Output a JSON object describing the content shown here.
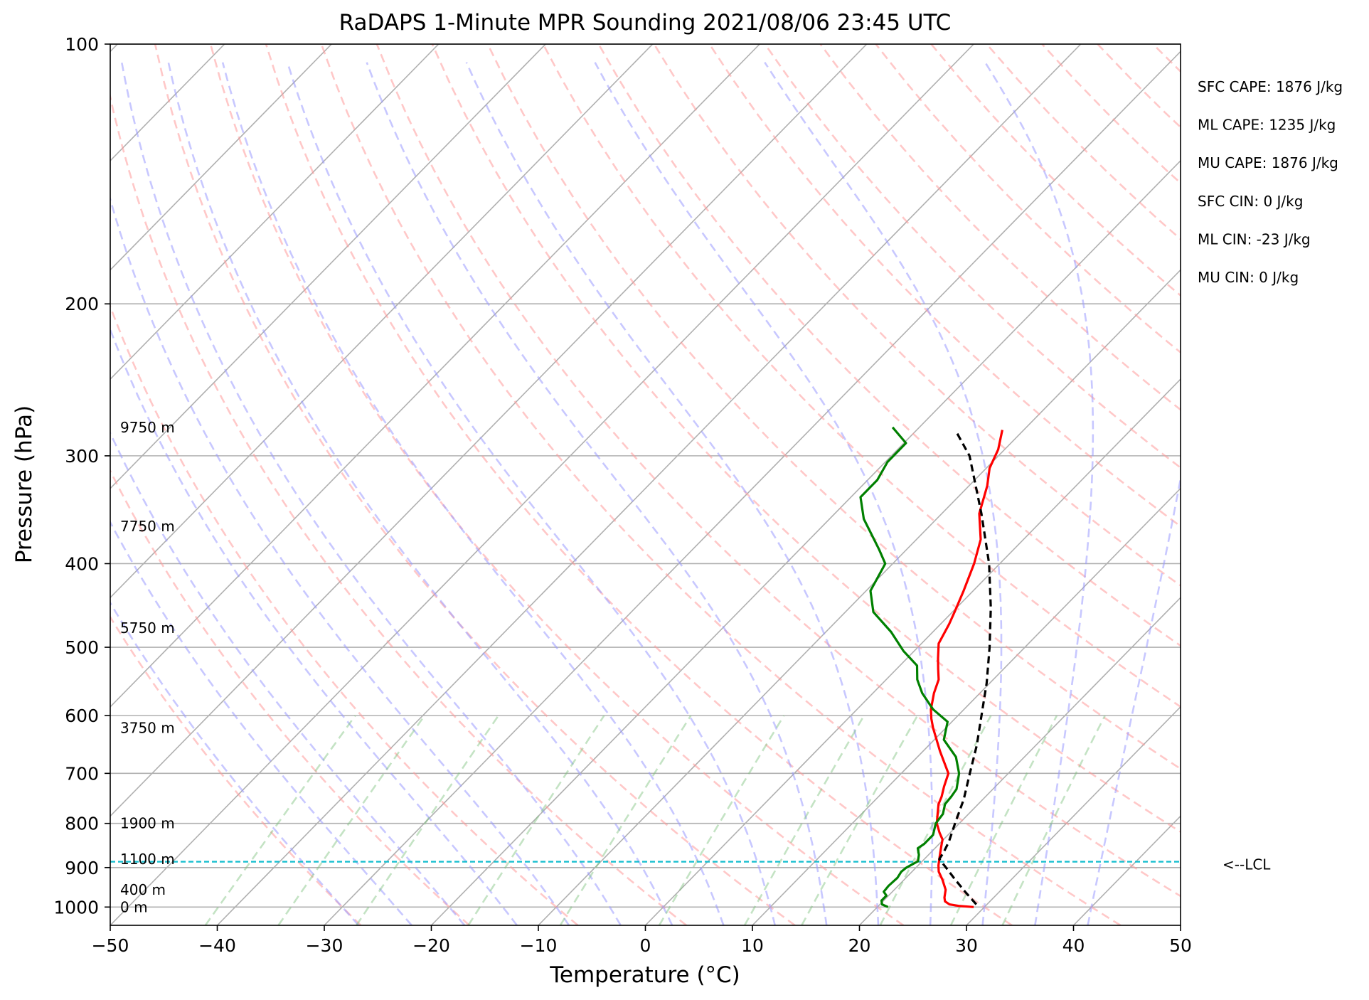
{
  "chart_data": {
    "type": "line",
    "title": "RaDAPS 1-Minute MPR Sounding 2021/08/06 23:45 UTC",
    "xlabel": "Temperature (°C)",
    "ylabel": "Pressure (hPa)",
    "xlim": [
      -50,
      50
    ],
    "ylim": [
      1050,
      100
    ],
    "y_scale": "log",
    "x_ticks": [
      "−50",
      "−40",
      "−30",
      "−20",
      "−10",
      "0",
      "10",
      "20",
      "30",
      "40",
      "50"
    ],
    "x_tick_values": [
      -50,
      -40,
      -30,
      -20,
      -10,
      0,
      10,
      20,
      30,
      40,
      50
    ],
    "y_ticks": [
      "100",
      "200",
      "300",
      "400",
      "500",
      "600",
      "700",
      "800",
      "900",
      "1000"
    ],
    "y_tick_values": [
      100,
      200,
      300,
      400,
      500,
      600,
      700,
      800,
      900,
      1000
    ],
    "grid": true,
    "series": [
      {
        "name": "",
        "color": "#ff0000",
        "pressure": [
          1000,
          997,
          993,
          985,
          975,
          955,
          930,
          910,
          895,
          880,
          865,
          850,
          835,
          820,
          800,
          780,
          760,
          745,
          725,
          700,
          660,
          620,
          605,
          590,
          565,
          545,
          530,
          515,
          495,
          470,
          455,
          430,
          400,
          375,
          350,
          325,
          310,
          295,
          280
        ],
        "values": [
          29,
          27.5,
          26.5,
          25.8,
          25.4,
          24.8,
          23.6,
          22.5,
          21.9,
          21.4,
          20.9,
          20.4,
          19.9,
          19.0,
          17.9,
          17.1,
          16.3,
          15.9,
          15.2,
          14.4,
          11.6,
          8.8,
          7.8,
          6.9,
          5.7,
          4.9,
          3.9,
          2.9,
          1.6,
          0.8,
          0.2,
          -0.9,
          -2.4,
          -4.0,
          -6.5,
          -8.3,
          -9.7,
          -10.6,
          -12.0
        ]
      },
      {
        "name": "",
        "color": "#008000",
        "pressure": [
          1000,
          993,
          983,
          970,
          960,
          945,
          925,
          910,
          900,
          885,
          870,
          855,
          845,
          825,
          800,
          780,
          760,
          745,
          730,
          700,
          670,
          640,
          610,
          590,
          565,
          545,
          525,
          505,
          480,
          455,
          430,
          400,
          385,
          355,
          335,
          320,
          305,
          290,
          278
        ],
        "values": [
          21,
          20.2,
          19.8,
          19.8,
          19.2,
          19.1,
          19.2,
          19.0,
          19.1,
          19.6,
          19.1,
          18.4,
          18.6,
          18.6,
          17.8,
          17.6,
          16.9,
          16.8,
          16.6,
          15.4,
          13.6,
          10.9,
          9.6,
          7.1,
          4.6,
          2.9,
          1.6,
          -1.0,
          -3.9,
          -7.4,
          -9.6,
          -10.7,
          -12.6,
          -16.8,
          -19.1,
          -19.1,
          -19.8,
          -19.8,
          -22.5
        ]
      },
      {
        "name": "",
        "color": "#000000",
        "dashed": true,
        "pressure": [
          993,
          960,
          930,
          900,
          880,
          865,
          840,
          800,
          750,
          700,
          650,
          600,
          550,
          500,
          450,
          400,
          350,
          300,
          280
        ],
        "values": [
          29,
          26.8,
          24.8,
          22.8,
          21.4,
          21.2,
          20.7,
          19.6,
          18.2,
          16.4,
          14.5,
          12.2,
          9.7,
          6.7,
          3.2,
          -1.0,
          -6.3,
          -12.7,
          -16.4
        ]
      }
    ],
    "height_labels": [
      "0 m",
      "400 m",
      "1100 m",
      "1900 m",
      "3750 m",
      "5750 m",
      "7750 m",
      "9750 m"
    ],
    "height_label_pressure": [
      1000,
      955,
      880,
      800,
      620,
      475,
      362,
      278
    ],
    "annotations": [
      "SFC CAPE: 1876 J/kg",
      "ML CAPE: 1235 J/kg",
      "MU CAPE: 1876 J/kg",
      "SFC CIN: 0 J/kg",
      "ML CIN: -23 J/kg",
      "MU CIN: 0 J/kg"
    ],
    "lcl": {
      "label": "<--LCL",
      "pressure": 886
    }
  }
}
